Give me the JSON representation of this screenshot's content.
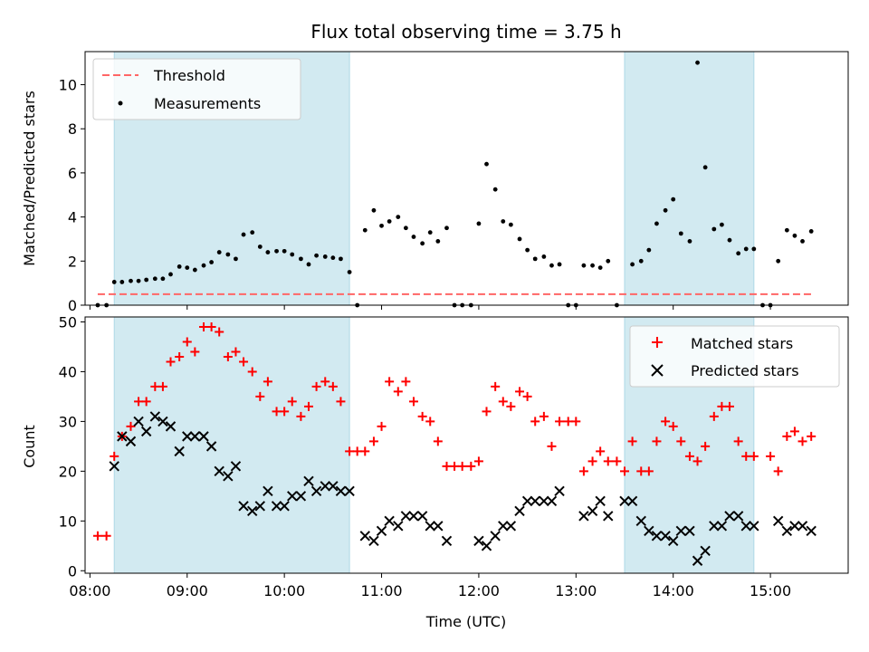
{
  "title": "Flux total observing time = 3.75 h",
  "colors": {
    "span": "#add8e6",
    "threshold": "#ff6666",
    "matched": "#ff0000",
    "predicted": "#000000",
    "measure": "#000000"
  },
  "chart_data": [
    {
      "type": "scatter",
      "panel": "top",
      "ylabel": "Matched/Predicted stars",
      "xlim": [
        7.95,
        15.8
      ],
      "ylim": [
        0,
        11.5
      ],
      "yticks": [
        0,
        2,
        4,
        6,
        8,
        10
      ],
      "threshold": 0.5,
      "threshold_range": [
        8.08,
        15.42
      ],
      "observing_spans": [
        [
          8.25,
          10.67
        ],
        [
          13.5,
          14.83
        ]
      ],
      "legend": [
        "Threshold",
        "Measurements"
      ],
      "legend_position": "upper-left",
      "series": [
        {
          "name": "Measurements",
          "marker": "dot",
          "points": [
            [
              8.08,
              0
            ],
            [
              8.17,
              0
            ],
            [
              8.25,
              1.05
            ],
            [
              8.33,
              1.05
            ],
            [
              8.42,
              1.1
            ],
            [
              8.5,
              1.1
            ],
            [
              8.58,
              1.15
            ],
            [
              8.67,
              1.2
            ],
            [
              8.75,
              1.2
            ],
            [
              8.83,
              1.4
            ],
            [
              8.92,
              1.75
            ],
            [
              9.0,
              1.7
            ],
            [
              9.08,
              1.6
            ],
            [
              9.17,
              1.8
            ],
            [
              9.25,
              1.95
            ],
            [
              9.33,
              2.4
            ],
            [
              9.42,
              2.3
            ],
            [
              9.5,
              2.1
            ],
            [
              9.58,
              3.2
            ],
            [
              9.67,
              3.3
            ],
            [
              9.75,
              2.65
            ],
            [
              9.83,
              2.4
            ],
            [
              9.92,
              2.45
            ],
            [
              10.0,
              2.45
            ],
            [
              10.08,
              2.3
            ],
            [
              10.17,
              2.1
            ],
            [
              10.25,
              1.85
            ],
            [
              10.33,
              2.25
            ],
            [
              10.42,
              2.2
            ],
            [
              10.5,
              2.15
            ],
            [
              10.58,
              2.1
            ],
            [
              10.67,
              1.5
            ],
            [
              10.75,
              0
            ],
            [
              10.83,
              3.4
            ],
            [
              10.92,
              4.3
            ],
            [
              11.0,
              3.6
            ],
            [
              11.08,
              3.8
            ],
            [
              11.17,
              4.0
            ],
            [
              11.25,
              3.5
            ],
            [
              11.33,
              3.1
            ],
            [
              11.42,
              2.8
            ],
            [
              11.5,
              3.3
            ],
            [
              11.58,
              2.9
            ],
            [
              11.67,
              3.5
            ],
            [
              11.75,
              0
            ],
            [
              11.83,
              0
            ],
            [
              11.92,
              0
            ],
            [
              12.0,
              3.7
            ],
            [
              12.08,
              6.4
            ],
            [
              12.17,
              5.25
            ],
            [
              12.25,
              3.8
            ],
            [
              12.33,
              3.65
            ],
            [
              12.42,
              3.0
            ],
            [
              12.5,
              2.5
            ],
            [
              12.58,
              2.1
            ],
            [
              12.67,
              2.2
            ],
            [
              12.75,
              1.8
            ],
            [
              12.83,
              1.85
            ],
            [
              12.92,
              0
            ],
            [
              13.0,
              0
            ],
            [
              13.08,
              1.8
            ],
            [
              13.17,
              1.8
            ],
            [
              13.25,
              1.7
            ],
            [
              13.33,
              2.0
            ],
            [
              13.42,
              0
            ],
            [
              13.58,
              1.85
            ],
            [
              13.67,
              2.0
            ],
            [
              13.75,
              2.5
            ],
            [
              13.83,
              3.7
            ],
            [
              13.92,
              4.3
            ],
            [
              14.0,
              4.8
            ],
            [
              14.08,
              3.25
            ],
            [
              14.17,
              2.9
            ],
            [
              14.25,
              11.0
            ],
            [
              14.33,
              6.25
            ],
            [
              14.42,
              3.45
            ],
            [
              14.5,
              3.65
            ],
            [
              14.58,
              2.95
            ],
            [
              14.67,
              2.35
            ],
            [
              14.75,
              2.55
            ],
            [
              14.83,
              2.55
            ],
            [
              14.92,
              0
            ],
            [
              15.0,
              0
            ],
            [
              15.08,
              2.0
            ],
            [
              15.17,
              3.4
            ],
            [
              15.25,
              3.15
            ],
            [
              15.33,
              2.9
            ],
            [
              15.42,
              3.35
            ]
          ]
        }
      ]
    },
    {
      "type": "scatter",
      "panel": "bottom",
      "ylabel": "Count",
      "xlabel": "Time (UTC)",
      "xlim": [
        7.95,
        15.8
      ],
      "ylim": [
        -0.5,
        51
      ],
      "yticks": [
        0,
        10,
        20,
        30,
        40,
        50
      ],
      "xticks": [
        8,
        9,
        10,
        11,
        12,
        13,
        14,
        15
      ],
      "xtick_labels": [
        "08:00",
        "09:00",
        "10:00",
        "11:00",
        "12:00",
        "13:00",
        "14:00",
        "15:00"
      ],
      "observing_spans": [
        [
          8.25,
          10.67
        ],
        [
          13.5,
          14.83
        ]
      ],
      "legend": [
        "Matched stars",
        "Predicted stars"
      ],
      "legend_position": "upper-right",
      "series": [
        {
          "name": "Matched stars",
          "marker": "plus",
          "points": [
            [
              8.08,
              7
            ],
            [
              8.17,
              7
            ],
            [
              8.25,
              23
            ],
            [
              8.33,
              27
            ],
            [
              8.42,
              29
            ],
            [
              8.5,
              34
            ],
            [
              8.58,
              34
            ],
            [
              8.67,
              37
            ],
            [
              8.75,
              37
            ],
            [
              8.83,
              42
            ],
            [
              8.92,
              43
            ],
            [
              9.0,
              46
            ],
            [
              9.08,
              44
            ],
            [
              9.17,
              49
            ],
            [
              9.25,
              49
            ],
            [
              9.33,
              48
            ],
            [
              9.42,
              43
            ],
            [
              9.5,
              44
            ],
            [
              9.58,
              42
            ],
            [
              9.67,
              40
            ],
            [
              9.75,
              35
            ],
            [
              9.83,
              38
            ],
            [
              9.92,
              32
            ],
            [
              10.0,
              32
            ],
            [
              10.08,
              34
            ],
            [
              10.17,
              31
            ],
            [
              10.25,
              33
            ],
            [
              10.33,
              37
            ],
            [
              10.42,
              38
            ],
            [
              10.5,
              37
            ],
            [
              10.58,
              34
            ],
            [
              10.67,
              24
            ],
            [
              10.75,
              24
            ],
            [
              10.83,
              24
            ],
            [
              10.92,
              26
            ],
            [
              11.0,
              29
            ],
            [
              11.08,
              38
            ],
            [
              11.17,
              36
            ],
            [
              11.25,
              38
            ],
            [
              11.33,
              34
            ],
            [
              11.42,
              31
            ],
            [
              11.5,
              30
            ],
            [
              11.58,
              26
            ],
            [
              11.67,
              21
            ],
            [
              11.75,
              21
            ],
            [
              11.83,
              21
            ],
            [
              11.92,
              21
            ],
            [
              12.0,
              22
            ],
            [
              12.08,
              32
            ],
            [
              12.17,
              37
            ],
            [
              12.25,
              34
            ],
            [
              12.33,
              33
            ],
            [
              12.42,
              36
            ],
            [
              12.5,
              35
            ],
            [
              12.58,
              30
            ],
            [
              12.67,
              31
            ],
            [
              12.75,
              25
            ],
            [
              12.83,
              30
            ],
            [
              12.92,
              30
            ],
            [
              13.0,
              30
            ],
            [
              13.08,
              20
            ],
            [
              13.17,
              22
            ],
            [
              13.25,
              24
            ],
            [
              13.33,
              22
            ],
            [
              13.42,
              22
            ],
            [
              13.5,
              20
            ],
            [
              13.58,
              26
            ],
            [
              13.67,
              20
            ],
            [
              13.75,
              20
            ],
            [
              13.83,
              26
            ],
            [
              13.92,
              30
            ],
            [
              14.0,
              29
            ],
            [
              14.08,
              26
            ],
            [
              14.17,
              23
            ],
            [
              14.25,
              22
            ],
            [
              14.33,
              25
            ],
            [
              14.42,
              31
            ],
            [
              14.5,
              33
            ],
            [
              14.58,
              33
            ],
            [
              14.67,
              26
            ],
            [
              14.75,
              23
            ],
            [
              14.83,
              23
            ],
            [
              15.0,
              23
            ],
            [
              15.08,
              20
            ],
            [
              15.17,
              27
            ],
            [
              15.25,
              28
            ],
            [
              15.33,
              26
            ],
            [
              15.42,
              27
            ]
          ]
        },
        {
          "name": "Predicted stars",
          "marker": "x",
          "points": [
            [
              8.25,
              21
            ],
            [
              8.33,
              27
            ],
            [
              8.42,
              26
            ],
            [
              8.5,
              30
            ],
            [
              8.58,
              28
            ],
            [
              8.67,
              31
            ],
            [
              8.75,
              30
            ],
            [
              8.83,
              29
            ],
            [
              8.92,
              24
            ],
            [
              9.0,
              27
            ],
            [
              9.08,
              27
            ],
            [
              9.17,
              27
            ],
            [
              9.25,
              25
            ],
            [
              9.33,
              20
            ],
            [
              9.42,
              19
            ],
            [
              9.5,
              21
            ],
            [
              9.58,
              13
            ],
            [
              9.67,
              12
            ],
            [
              9.75,
              13
            ],
            [
              9.83,
              16
            ],
            [
              9.92,
              13
            ],
            [
              10.0,
              13
            ],
            [
              10.08,
              15
            ],
            [
              10.17,
              15
            ],
            [
              10.25,
              18
            ],
            [
              10.33,
              16
            ],
            [
              10.42,
              17
            ],
            [
              10.5,
              17
            ],
            [
              10.58,
              16
            ],
            [
              10.67,
              16
            ],
            [
              10.83,
              7
            ],
            [
              10.92,
              6
            ],
            [
              11.0,
              8
            ],
            [
              11.08,
              10
            ],
            [
              11.17,
              9
            ],
            [
              11.25,
              11
            ],
            [
              11.33,
              11
            ],
            [
              11.42,
              11
            ],
            [
              11.5,
              9
            ],
            [
              11.58,
              9
            ],
            [
              11.67,
              6
            ],
            [
              12.0,
              6
            ],
            [
              12.08,
              5
            ],
            [
              12.17,
              7
            ],
            [
              12.25,
              9
            ],
            [
              12.33,
              9
            ],
            [
              12.42,
              12
            ],
            [
              12.5,
              14
            ],
            [
              12.58,
              14
            ],
            [
              12.67,
              14
            ],
            [
              12.75,
              14
            ],
            [
              12.83,
              16
            ],
            [
              13.08,
              11
            ],
            [
              13.17,
              12
            ],
            [
              13.25,
              14
            ],
            [
              13.33,
              11
            ],
            [
              13.5,
              14
            ],
            [
              13.58,
              14
            ],
            [
              13.67,
              10
            ],
            [
              13.75,
              8
            ],
            [
              13.83,
              7
            ],
            [
              13.92,
              7
            ],
            [
              14.0,
              6
            ],
            [
              14.08,
              8
            ],
            [
              14.17,
              8
            ],
            [
              14.25,
              2
            ],
            [
              14.33,
              4
            ],
            [
              14.42,
              9
            ],
            [
              14.5,
              9
            ],
            [
              14.58,
              11
            ],
            [
              14.67,
              11
            ],
            [
              14.75,
              9
            ],
            [
              14.83,
              9
            ],
            [
              15.08,
              10
            ],
            [
              15.17,
              8
            ],
            [
              15.25,
              9
            ],
            [
              15.33,
              9
            ],
            [
              15.42,
              8
            ]
          ]
        }
      ]
    }
  ]
}
